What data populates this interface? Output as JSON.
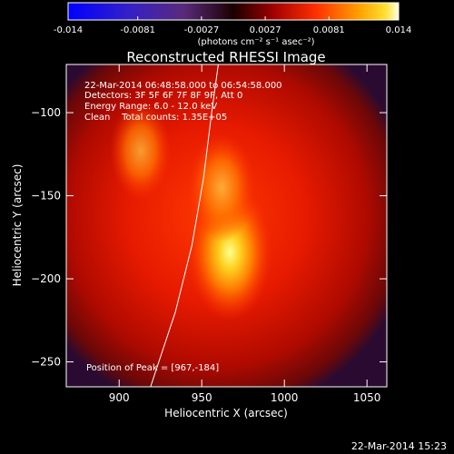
{
  "colorbar": {
    "tick_labels": [
      "-0.014",
      "-0.0081",
      "-0.0027",
      "0.0027",
      "0.0081",
      "0.014"
    ],
    "tick_values": [
      -0.014,
      -0.0081,
      -0.0027,
      0.0027,
      0.0081,
      0.014
    ],
    "range": [
      -0.014,
      0.014
    ],
    "units": "(photons cm⁻² s⁻¹ asec⁻²)"
  },
  "chart_data": {
    "type": "heatmap",
    "title": "Reconstructed RHESSI Image",
    "xlabel": "Heliocentric X (arcsec)",
    "ylabel": "Heliocentric Y (arcsec)",
    "xlim": [
      868,
      1062
    ],
    "ylim": [
      -265,
      -71
    ],
    "xticks": [
      900,
      950,
      1000,
      1050
    ],
    "yticks": [
      -250,
      -200,
      -150,
      -100
    ],
    "xtick_labels": [
      "900",
      "950",
      "1000",
      "1050"
    ],
    "ytick_labels": [
      "−250",
      "−200",
      "−150",
      "−100"
    ],
    "colormap": "hot (black-red-orange-yellow-white); negative: blue-purple",
    "sources": [
      {
        "x": 967,
        "y": -184,
        "peak": 0.014
      },
      {
        "x": 962,
        "y": -145,
        "peak": 0.0085
      },
      {
        "x": 913,
        "y": -123,
        "peak": 0.0065
      }
    ],
    "limb_curve": [
      [
        919,
        -265
      ],
      [
        934,
        -220
      ],
      [
        944,
        -180
      ],
      [
        951,
        -140
      ],
      [
        956,
        -100
      ],
      [
        960,
        -71
      ]
    ],
    "peak_marker": {
      "x": 967,
      "y": -184
    }
  },
  "info_lines": [
    "22-Mar-2014 06:48:58.000 to 06:54:58.000",
    "Detectors: 3F 5F 6F 7F 8F 9F, Att 0",
    "Energy Range: 6.0 - 12.0 keV",
    "Clean    Total counts: 1.35E+05"
  ],
  "peak_text": "Position of Peak = [967,-184]",
  "footer_timestamp": "22-Mar-2014 15:23"
}
